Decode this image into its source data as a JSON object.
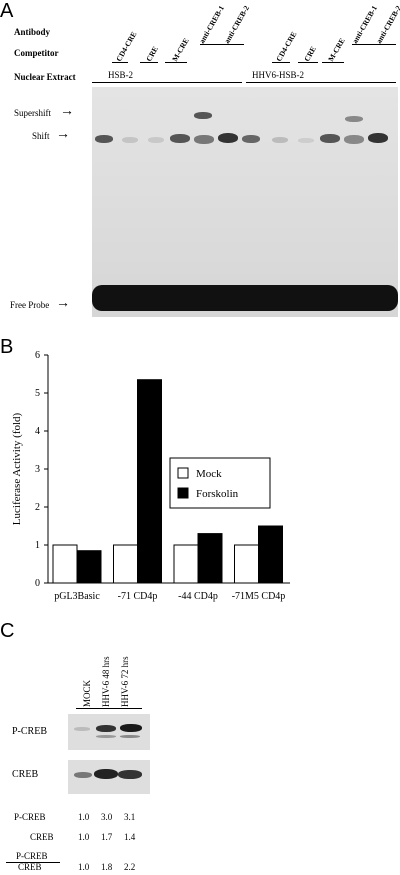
{
  "panel_a": {
    "letter": "A",
    "row_labels": {
      "antibody": "Antibody",
      "competitor": "Competitor",
      "nuclear_extract": "Nuclear Extract"
    },
    "competitor_lanes": [
      "CD4-CRE",
      "CRE",
      "M-CRE",
      "anti-CREB-1",
      "anti-CREB-2",
      "CD4-CRE",
      "CRE",
      "M-CRE",
      "anti-CREB-1",
      "anti-CREB-2"
    ],
    "extracts": [
      "HSB-2",
      "HHV6-HSB-2"
    ],
    "band_labels": {
      "supershift": "Supershift",
      "shift": "Shift",
      "free_probe": "Free Probe"
    }
  },
  "panel_b": {
    "letter": "B",
    "chart_data": {
      "type": "bar",
      "categories": [
        "pGL3Basic",
        "-71 CD4p",
        "-44 CD4p",
        "-71M5 CD4p"
      ],
      "series": [
        {
          "name": "Mock",
          "values": [
            1.0,
            1.0,
            1.0,
            1.0
          ],
          "color": "#ffffff"
        },
        {
          "name": "Forskolin",
          "values": [
            0.85,
            5.35,
            1.3,
            1.5
          ],
          "color": "#000000"
        }
      ],
      "ylabel": "Luciferase Activity (fold)",
      "ylim": [
        0,
        6
      ],
      "yticks": [
        "0",
        "1",
        "2",
        "3",
        "4",
        "5",
        "6"
      ],
      "legend_placement": "right"
    }
  },
  "panel_c": {
    "letter": "C",
    "lanes": [
      "MOCK",
      "HHV-6 48 hrs",
      "HHV-6 72 hrs"
    ],
    "blots": [
      "P-CREB",
      "CREB"
    ],
    "quant": [
      {
        "label": "P-CREB",
        "values": [
          "1.0",
          "3.0",
          "3.1"
        ]
      },
      {
        "label": "CREB",
        "values": [
          "1.0",
          "1.7",
          "1.4"
        ]
      }
    ],
    "ratio": {
      "numerator": "P-CREB",
      "denominator": "CREB",
      "values": [
        "1.0",
        "1.8",
        "2.2"
      ]
    }
  }
}
